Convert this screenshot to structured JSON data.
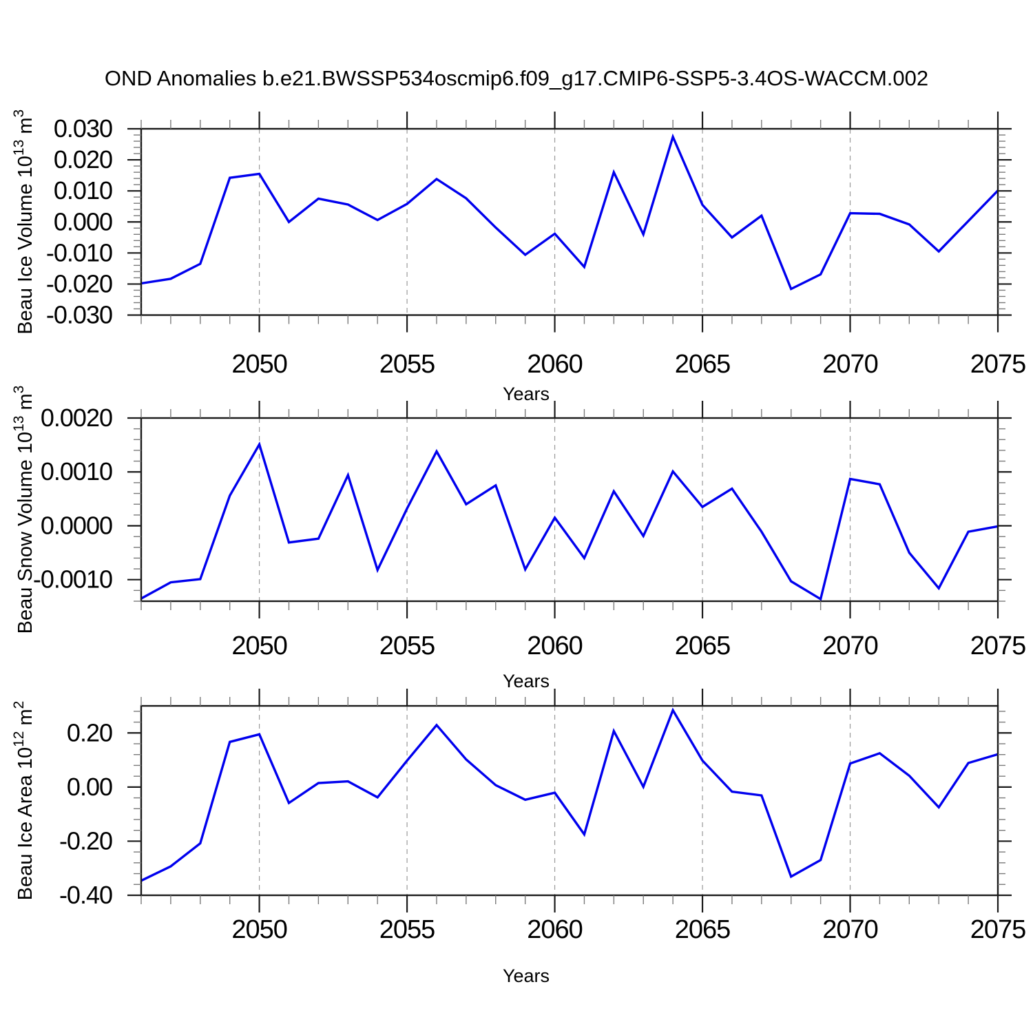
{
  "title": "OND Anomalies b.e21.BWSSP534oscmip6.f09_g17.CMIP6-SSP5-3.4OS-WACCM.002",
  "colors": {
    "line": "#0000EE",
    "axis": "#1a1a1a",
    "major_tick": "#1a1a1a",
    "minor_tick": "#7a7a7a",
    "gridline": "#999999",
    "background": "#ffffff",
    "text": "#000000"
  },
  "chart_data": {
    "type": "line",
    "title": "OND Anomalies b.e21.BWSSP534oscmip6.f09_g17.CMIP6-SSP5-3.4OS-WACCM.002",
    "xlabel": "Years",
    "xlim": [
      2046,
      2075
    ],
    "x": [
      2046,
      2047,
      2048,
      2049,
      2050,
      2051,
      2052,
      2053,
      2054,
      2055,
      2056,
      2057,
      2058,
      2059,
      2060,
      2061,
      2062,
      2063,
      2064,
      2065,
      2066,
      2067,
      2068,
      2069,
      2070,
      2071,
      2072,
      2073,
      2074,
      2075
    ],
    "x_major_ticks": [
      2050,
      2055,
      2060,
      2065,
      2070,
      2075
    ],
    "x_minor_step": 1,
    "x_gridlines": [
      2050,
      2055,
      2060,
      2065,
      2070
    ],
    "grid": "vertical-dashed-at-major-x",
    "legend": "none",
    "panels": [
      {
        "name": "Beau Ice Volume",
        "ylabel": "Beau Ice Volume 10^{13} m^{3}",
        "ylabel_plain": "Beau Ice Volume 10^13 m^3",
        "ylim": [
          -0.03,
          0.03
        ],
        "ytick_step": 0.01,
        "yminor_step": 0.002,
        "ytick_decimals": 3,
        "ytick_labels": [
          "-0.030",
          "-0.020",
          "-0.010",
          "0.000",
          "0.010",
          "0.020",
          "0.030"
        ],
        "values": [
          -0.0198,
          -0.0183,
          -0.0135,
          0.0142,
          0.0155,
          0.0,
          0.0075,
          0.0056,
          0.0006,
          0.0058,
          0.0138,
          0.0076,
          -0.0018,
          -0.0106,
          -0.0038,
          -0.0145,
          0.016,
          -0.004,
          0.0274,
          0.0055,
          -0.005,
          0.002,
          -0.0216,
          -0.0169,
          0.0028,
          0.0026,
          -0.0008,
          -0.0095,
          0.0003,
          0.0101
        ]
      },
      {
        "name": "Beau Snow Volume",
        "ylabel": "Beau Snow Volume 10^{13} m^{3}",
        "ylabel_plain": "Beau Snow Volume 10^13 m^3",
        "ylim": [
          -0.0014,
          0.002
        ],
        "ytick_step": 0.001,
        "yminor_step": 0.0002,
        "ytick_decimals": 4,
        "ytick_labels": [
          "-0.0010",
          "0.0000",
          "0.0010",
          "0.0020"
        ],
        "values": [
          -0.00135,
          -0.00105,
          -0.00099,
          0.00056,
          0.00151,
          -0.00031,
          -0.00024,
          0.00094,
          -0.00082,
          0.00032,
          0.00138,
          0.0004,
          0.00075,
          -0.00081,
          0.00015,
          -0.0006,
          0.00064,
          -0.00019,
          0.00101,
          0.00035,
          0.00069,
          -0.00011,
          -0.00103,
          -0.00136,
          0.00087,
          0.00077,
          -0.0005,
          -0.00116,
          -0.00011,
          -1e-05
        ]
      },
      {
        "name": "Beau Ice Area",
        "ylabel": "Beau Ice Area 10^{12} m^{2}",
        "ylabel_plain": "Beau Ice Area 10^12 m^2",
        "ylim": [
          -0.4,
          0.3
        ],
        "ytick_step": 0.2,
        "yminor_step": 0.04,
        "ytick_decimals": 2,
        "ytick_labels": [
          "-0.40",
          "-0.20",
          "0.00",
          "0.20"
        ],
        "values": [
          -0.346,
          -0.293,
          -0.208,
          0.167,
          0.195,
          -0.059,
          0.015,
          0.021,
          -0.038,
          0.098,
          0.229,
          0.102,
          0.007,
          -0.047,
          -0.021,
          -0.175,
          0.207,
          0.001,
          0.284,
          0.098,
          -0.017,
          -0.031,
          -0.331,
          -0.27,
          0.087,
          0.125,
          0.042,
          -0.075,
          0.089,
          0.121
        ]
      }
    ]
  }
}
